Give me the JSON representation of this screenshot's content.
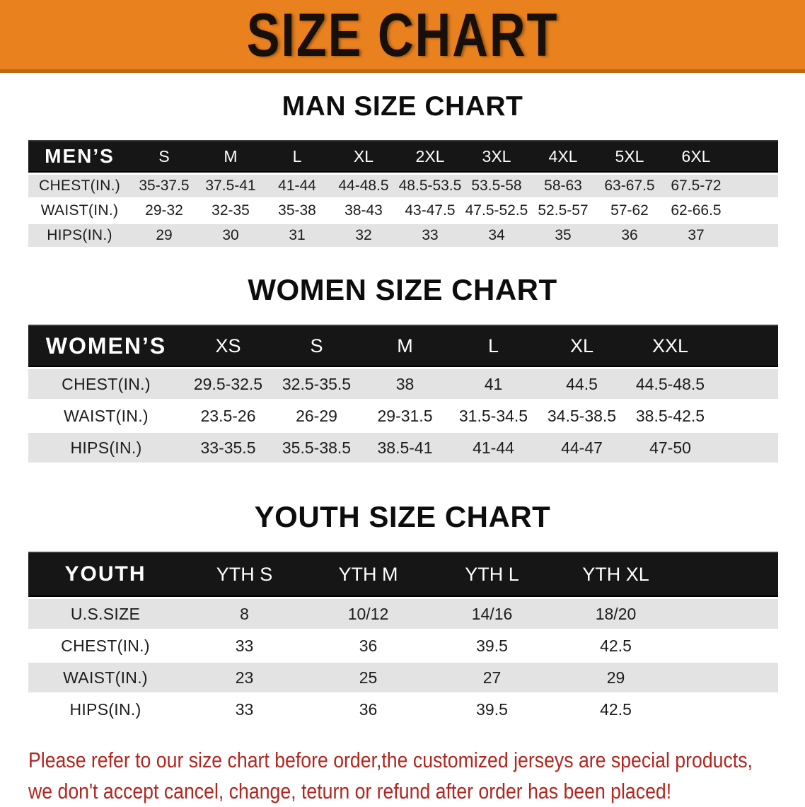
{
  "banner": {
    "title": "SIZE CHART"
  },
  "sections": [
    {
      "id": "men",
      "heading": "MAN SIZE CHART",
      "corner_label": "MEN’S",
      "sizes": [
        "S",
        "M",
        "L",
        "XL",
        "2XL",
        "3XL",
        "4XL",
        "5XL",
        "6XL"
      ],
      "rows": [
        {
          "label": "CHEST(IN.)",
          "values": [
            "35-37.5",
            "37.5-41",
            "41-44",
            "44-48.5",
            "48.5-53.5",
            "53.5-58",
            "58-63",
            "63-67.5",
            "67.5-72"
          ]
        },
        {
          "label": "WAIST(IN.)",
          "values": [
            "29-32",
            "32-35",
            "35-38",
            "38-43",
            "43-47.5",
            "47.5-52.5",
            "52.5-57",
            "57-62",
            "62-66.5"
          ]
        },
        {
          "label": "HIPS(IN.)",
          "values": [
            "29",
            "30",
            "31",
            "32",
            "33",
            "34",
            "35",
            "36",
            "37"
          ]
        }
      ]
    },
    {
      "id": "women",
      "heading": "WOMEN SIZE CHART",
      "corner_label": "WOMEN’S",
      "sizes": [
        "XS",
        "S",
        "M",
        "L",
        "XL",
        "XXL"
      ],
      "rows": [
        {
          "label": "CHEST(IN.)",
          "values": [
            "29.5-32.5",
            "32.5-35.5",
            "38",
            "41",
            "44.5",
            "44.5-48.5"
          ]
        },
        {
          "label": "WAIST(IN.)",
          "values": [
            "23.5-26",
            "26-29",
            "29-31.5",
            "31.5-34.5",
            "34.5-38.5",
            "38.5-42.5"
          ]
        },
        {
          "label": "HIPS(IN.)",
          "values": [
            "33-35.5",
            "35.5-38.5",
            "38.5-41",
            "41-44",
            "44-47",
            "47-50"
          ]
        }
      ]
    },
    {
      "id": "youth",
      "heading": "YOUTH SIZE CHART",
      "corner_label": "YOUTH",
      "sizes": [
        "YTH S",
        "YTH M",
        "YTH L",
        "YTH XL"
      ],
      "rows": [
        {
          "label": "U.S.SIZE",
          "values": [
            "8",
            "10/12",
            "14/16",
            "18/20"
          ]
        },
        {
          "label": "CHEST(IN.)",
          "values": [
            "33",
            "36",
            "39.5",
            "42.5"
          ]
        },
        {
          "label": "WAIST(IN.)",
          "values": [
            "23",
            "25",
            "27",
            "29"
          ]
        },
        {
          "label": "HIPS(IN.)",
          "values": [
            "33",
            "36",
            "39.5",
            "42.5"
          ]
        }
      ]
    }
  ],
  "footer": {
    "line1": "Please refer to our size chart before order,the customized jerseys are special products,",
    "line2": "we don't accept cancel, change, teturn or refund after order has been placed!"
  },
  "colors": {
    "banner_bg": "#E8811E",
    "banner_edge": "#BE660E",
    "header_bar": "#161616",
    "row_gray": "#E3E3E3",
    "row_white": "#FFFFFF",
    "footer_red": "#B2261F"
  }
}
